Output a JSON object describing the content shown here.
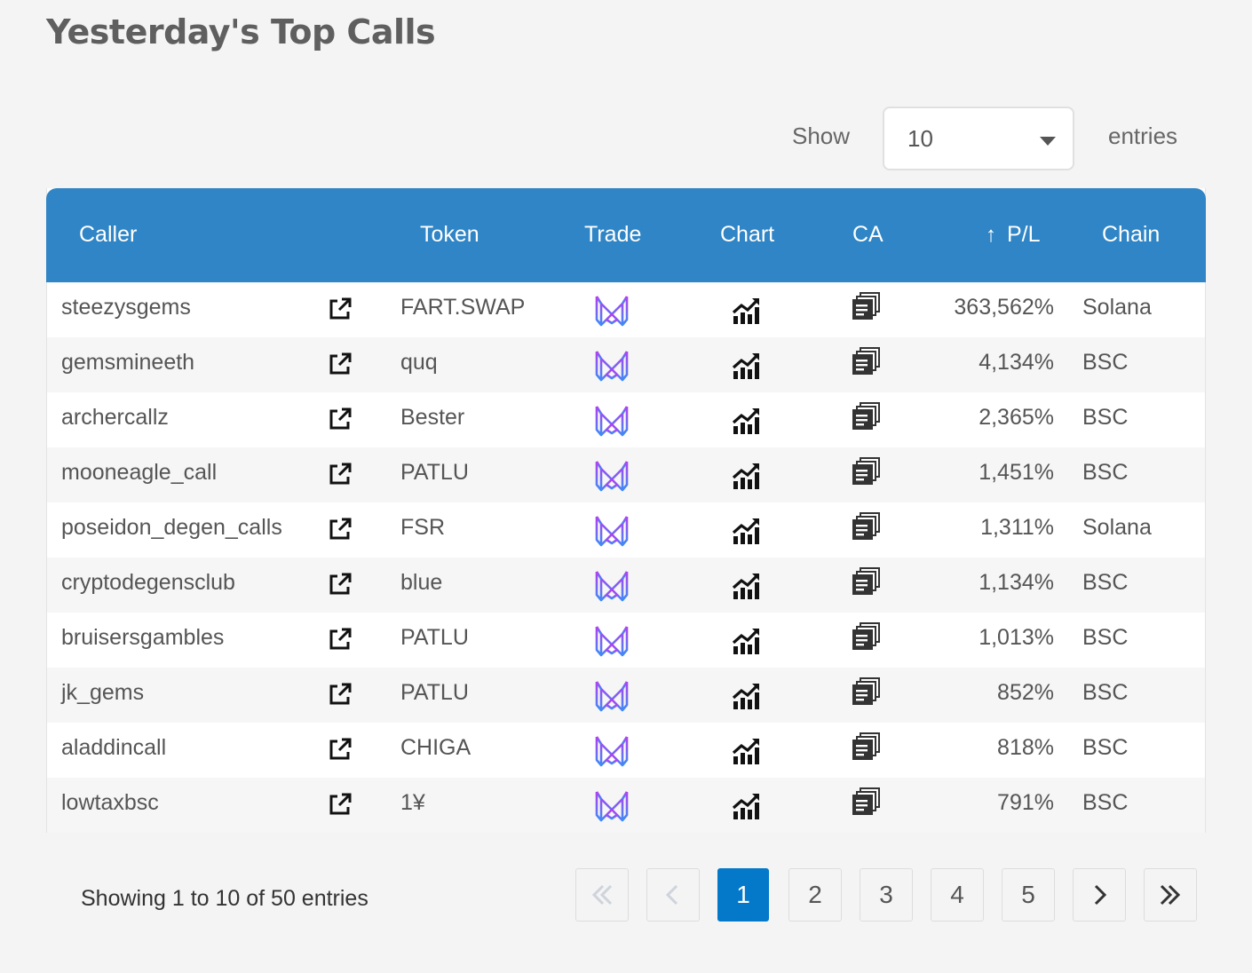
{
  "page": {
    "title": "Yesterday's Top Calls"
  },
  "length": {
    "show_label": "Show",
    "value": "10",
    "entries_label": "entries"
  },
  "table": {
    "headers": {
      "caller": "Caller",
      "token": "Token",
      "trade": "Trade",
      "chart": "Chart",
      "ca": "CA",
      "pl_arrow": "↑",
      "pl": "P/L",
      "chain": "Chain"
    },
    "rows": [
      {
        "caller": "steezysgems",
        "token": "FART.SWAP",
        "pl": "363,562%",
        "chain": "Solana"
      },
      {
        "caller": "gemsmineeth",
        "token": "quq",
        "pl": "4,134%",
        "chain": "BSC"
      },
      {
        "caller": "archercallz",
        "token": "Bester",
        "pl": "2,365%",
        "chain": "BSC"
      },
      {
        "caller": "mooneagle_call",
        "token": "PATLU",
        "pl": "1,451%",
        "chain": "BSC"
      },
      {
        "caller": "poseidon_degen_calls",
        "token": "FSR",
        "pl": "1,311%",
        "chain": "Solana"
      },
      {
        "caller": "cryptodegensclub",
        "token": "blue",
        "pl": "1,134%",
        "chain": "BSC"
      },
      {
        "caller": "bruisersgambles",
        "token": "PATLU",
        "pl": "1,013%",
        "chain": "BSC"
      },
      {
        "caller": "jk_gems",
        "token": "PATLU",
        "pl": "852%",
        "chain": "BSC"
      },
      {
        "caller": "aladdincall",
        "token": "CHIGA",
        "pl": "818%",
        "chain": "BSC"
      },
      {
        "caller": "lowtaxbsc",
        "token": "1¥",
        "pl": "791%",
        "chain": "BSC"
      }
    ]
  },
  "footer": {
    "info": "Showing 1 to 10 of 50 entries",
    "pages": [
      "1",
      "2",
      "3",
      "4",
      "5"
    ],
    "first_icon": "double-chevron-left-icon",
    "prev_icon": "chevron-left-icon",
    "next_icon": "chevron-right-icon",
    "last_icon": "double-chevron-right-icon"
  },
  "colors": {
    "header_bg": "#2f85c5",
    "active_page": "#0479c9",
    "trade_icon_from": "#b83cf0",
    "trade_icon_to": "#3d8cf5"
  }
}
